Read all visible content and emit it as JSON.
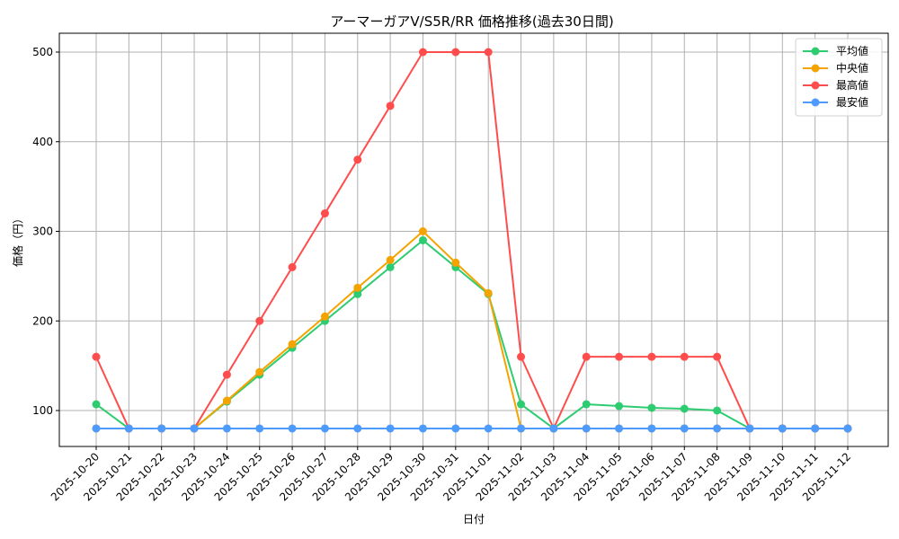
{
  "chart_data": {
    "type": "line",
    "title": "アーマーガアV/S5R/RR 価格推移(過去30日間)",
    "xlabel": "日付",
    "ylabel": "価格（円）",
    "ylim": [
      60,
      522
    ],
    "yticks": [
      100,
      200,
      300,
      400,
      500
    ],
    "grid": true,
    "legend_position": "upper right",
    "categories": [
      "2025-10-20",
      "2025-10-21",
      "2025-10-22",
      "2025-10-23",
      "2025-10-24",
      "2025-10-25",
      "2025-10-26",
      "2025-10-27",
      "2025-10-28",
      "2025-10-29",
      "2025-10-30",
      "2025-10-31",
      "2025-11-01",
      "2025-11-02",
      "2025-11-03",
      "2025-11-04",
      "2025-11-05",
      "2025-11-06",
      "2025-11-07",
      "2025-11-08",
      "2025-11-09",
      "2025-11-10",
      "2025-11-11",
      "2025-11-12"
    ],
    "series": [
      {
        "name": "平均値",
        "color": "#2ecc71",
        "values": [
          107,
          80,
          80,
          80,
          110,
          140,
          170,
          200,
          230,
          260,
          290,
          260,
          230,
          107,
          80,
          107,
          105,
          103,
          102,
          100,
          80,
          80,
          80,
          80
        ]
      },
      {
        "name": "中央値",
        "color": "#f5a300",
        "values": [
          80,
          80,
          80,
          80,
          111,
          143,
          174,
          205,
          237,
          268,
          300,
          265,
          231,
          80,
          80,
          80,
          80,
          80,
          80,
          80,
          80,
          80,
          80,
          80
        ]
      },
      {
        "name": "最高値",
        "color": "#ff4d4d",
        "values": [
          160,
          80,
          80,
          80,
          140,
          200,
          260,
          320,
          380,
          440,
          500,
          500,
          500,
          160,
          80,
          160,
          160,
          160,
          160,
          160,
          80,
          80,
          80,
          80
        ]
      },
      {
        "name": "最安値",
        "color": "#4d9bff",
        "values": [
          80,
          80,
          80,
          80,
          80,
          80,
          80,
          80,
          80,
          80,
          80,
          80,
          80,
          80,
          80,
          80,
          80,
          80,
          80,
          80,
          80,
          80,
          80,
          80
        ]
      }
    ]
  }
}
